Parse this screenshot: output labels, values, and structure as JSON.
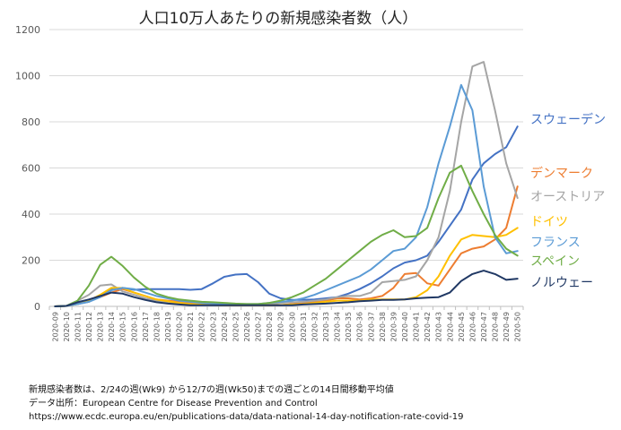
{
  "chart_data": {
    "type": "line",
    "title": "人口10万人あたりの新規感染者数（人）",
    "xlabel": "",
    "ylabel": "",
    "ylim": [
      0,
      1200
    ],
    "yticks": [
      0,
      200,
      400,
      600,
      800,
      1000,
      1200
    ],
    "grid": true,
    "legend": "right, inline labels at line ends",
    "categories": [
      "2020-09",
      "2020-10",
      "2020-11",
      "2020-12",
      "2020-13",
      "2020-14",
      "2020-15",
      "2020-16",
      "2020-17",
      "2020-18",
      "2020-19",
      "2020-20",
      "2020-21",
      "2020-22",
      "2020-23",
      "2020-24",
      "2020-25",
      "2020-26",
      "2020-27",
      "2020-28",
      "2020-29",
      "2020-30",
      "2020-31",
      "2020-32",
      "2020-33",
      "2020-34",
      "2020-35",
      "2020-36",
      "2020-37",
      "2020-38",
      "2020-39",
      "2020-40",
      "2020-41",
      "2020-42",
      "2020-43",
      "2020-44",
      "2020-45",
      "2020-46",
      "2020-47",
      "2020-48",
      "2020-49",
      "2020-50"
    ],
    "series": [
      {
        "name": "スウェーデン",
        "color": "#4472c4",
        "values": [
          0,
          2,
          10,
          20,
          45,
          75,
          80,
          72,
          75,
          75,
          75,
          75,
          72,
          75,
          100,
          128,
          138,
          140,
          105,
          55,
          35,
          28,
          28,
          30,
          35,
          40,
          55,
          75,
          100,
          130,
          165,
          190,
          200,
          220,
          280,
          350,
          420,
          550,
          620,
          660,
          690,
          780
        ]
      },
      {
        "name": "デンマーク",
        "color": "#ed7d31",
        "values": [
          0,
          2,
          15,
          25,
          40,
          60,
          75,
          60,
          45,
          30,
          25,
          20,
          15,
          10,
          8,
          6,
          5,
          5,
          5,
          5,
          5,
          10,
          15,
          20,
          25,
          35,
          35,
          30,
          35,
          45,
          80,
          140,
          145,
          100,
          90,
          160,
          230,
          250,
          260,
          290,
          340,
          520
        ]
      },
      {
        "name": "オーストリア",
        "color": "#a5a5a5",
        "values": [
          0,
          2,
          25,
          50,
          90,
          95,
          65,
          50,
          35,
          25,
          18,
          15,
          10,
          8,
          6,
          5,
          5,
          5,
          5,
          10,
          15,
          18,
          20,
          25,
          30,
          40,
          45,
          45,
          60,
          105,
          110,
          115,
          130,
          200,
          300,
          500,
          800,
          1040,
          1060,
          850,
          620,
          470
        ]
      },
      {
        "name": "ドイツ",
        "color": "#ffc000",
        "values": [
          0,
          2,
          10,
          25,
          50,
          80,
          80,
          60,
          45,
          30,
          22,
          15,
          10,
          8,
          6,
          5,
          5,
          5,
          5,
          5,
          6,
          8,
          10,
          15,
          20,
          25,
          25,
          25,
          30,
          30,
          30,
          30,
          40,
          70,
          130,
          220,
          290,
          310,
          305,
          300,
          310,
          340
        ]
      },
      {
        "name": "フランス",
        "color": "#5b9bd5",
        "values": [
          0,
          2,
          10,
          20,
          40,
          70,
          80,
          75,
          60,
          45,
          35,
          25,
          20,
          15,
          12,
          10,
          10,
          10,
          10,
          15,
          20,
          25,
          35,
          50,
          70,
          90,
          110,
          130,
          160,
          200,
          240,
          250,
          300,
          430,
          620,
          780,
          960,
          850,
          520,
          300,
          230,
          240
        ]
      },
      {
        "name": "スペイン",
        "color": "#70ad47",
        "values": [
          0,
          2,
          25,
          90,
          180,
          215,
          175,
          125,
          85,
          55,
          40,
          30,
          25,
          20,
          18,
          15,
          12,
          10,
          10,
          15,
          25,
          40,
          60,
          90,
          120,
          160,
          200,
          240,
          280,
          310,
          330,
          300,
          305,
          340,
          470,
          580,
          610,
          500,
          400,
          310,
          250,
          220
        ]
      },
      {
        "name": "ノルウェー",
        "color": "#203864",
        "values": [
          0,
          2,
          18,
          30,
          45,
          60,
          55,
          40,
          28,
          18,
          12,
          8,
          5,
          5,
          5,
          5,
          5,
          5,
          5,
          5,
          5,
          5,
          8,
          10,
          12,
          15,
          18,
          22,
          25,
          28,
          28,
          30,
          35,
          38,
          40,
          60,
          110,
          140,
          155,
          140,
          115,
          120
        ]
      }
    ]
  },
  "notes": {
    "line1": "新規感染者数は、2/24の週(Wk9) から12/7の週(Wk50)までの週ごとの14日間移動平均値",
    "line2": "データ出所：European Centre for Disease Prevention and Control",
    "line3": "https://www.ecdc.europa.eu/en/publications-data/data-national-14-day-notification-rate-covid-19"
  }
}
